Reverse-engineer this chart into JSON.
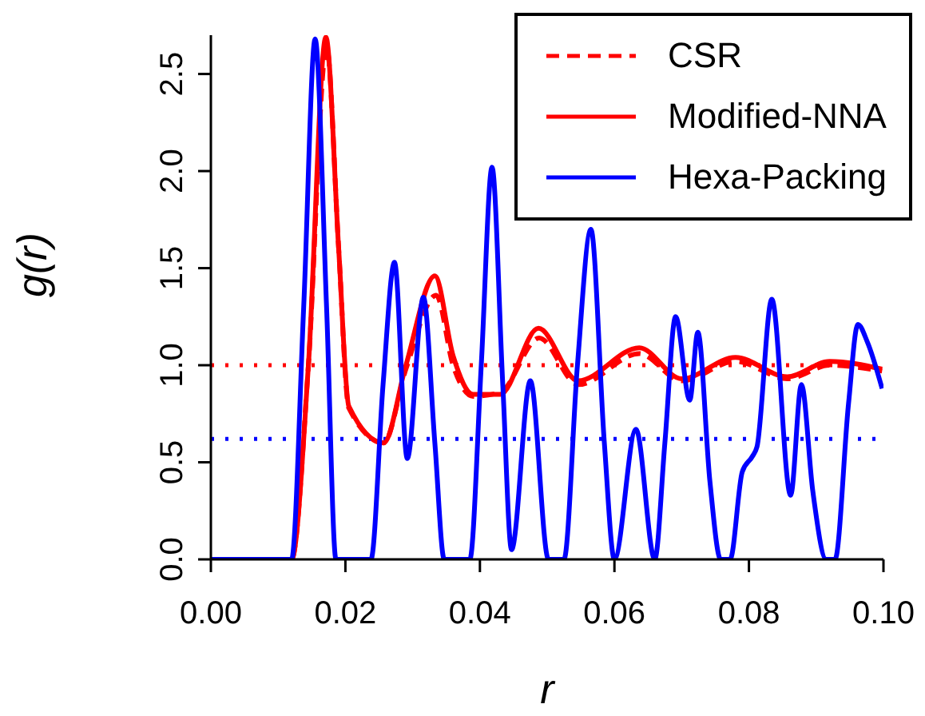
{
  "chart_data": {
    "type": "line",
    "xlabel": "r",
    "ylabel": "g(r)",
    "legend": "top right",
    "grid": false,
    "xlim": [
      0,
      0.1
    ],
    "xticks": [
      {
        "value": 0,
        "label": "0.00"
      },
      {
        "value": 0.02,
        "label": "0.02"
      },
      {
        "value": 0.04,
        "label": "0.04"
      },
      {
        "value": 0.06,
        "label": "0.06"
      },
      {
        "value": 0.08,
        "label": "0.08"
      },
      {
        "value": 0.1,
        "label": "0.10"
      }
    ],
    "ylim": [
      0,
      2.7
    ],
    "yticks": [
      {
        "value": 0,
        "label": "0.0"
      },
      {
        "value": 0.5,
        "label": "0.5"
      },
      {
        "value": 1,
        "label": "1.0"
      },
      {
        "value": 1.5,
        "label": "1.5"
      },
      {
        "value": 2,
        "label": "2.0"
      },
      {
        "value": 2.5,
        "label": "2.5"
      }
    ],
    "ref_lines": [
      {
        "axis": "y",
        "value": 1,
        "color": "#ff0000",
        "line_style": "dotted"
      },
      {
        "axis": "y",
        "value": 0.62,
        "color": "#0000ff",
        "line_style": "dotted"
      }
    ],
    "series": [
      {
        "name": "CSR",
        "color": "#ff0000",
        "line_style": "dashed",
        "x": [
          0,
          0.012,
          0.0145,
          0.0172,
          0.019,
          0.0205,
          0.0257,
          0.029,
          0.0335,
          0.036,
          0.039,
          0.043,
          0.0488,
          0.0546,
          0.0637,
          0.07,
          0.078,
          0.0857,
          0.092,
          0.0998
        ],
        "values": [
          0,
          0,
          1.0,
          2.64,
          1.6,
          0.78,
          0.6,
          0.98,
          1.36,
          1.0,
          0.84,
          0.86,
          1.14,
          0.9,
          1.06,
          0.92,
          1.02,
          0.93,
          1.0,
          0.97
        ]
      },
      {
        "name": "Modified-NNA",
        "color": "#ff0000",
        "line_style": "solid",
        "x": [
          0,
          0.012,
          0.0145,
          0.0171,
          0.019,
          0.0205,
          0.0257,
          0.029,
          0.0333,
          0.036,
          0.039,
          0.043,
          0.0487,
          0.0546,
          0.0637,
          0.07,
          0.078,
          0.0857,
          0.092,
          0.0998
        ],
        "values": [
          0,
          0,
          1.0,
          2.69,
          1.6,
          0.79,
          0.6,
          1.0,
          1.46,
          1.05,
          0.85,
          0.85,
          1.19,
          0.92,
          1.09,
          0.93,
          1.04,
          0.94,
          1.02,
          0.98
        ]
      },
      {
        "name": "Hexa-Packing",
        "color": "#0000ff",
        "line_style": "solid",
        "x": [
          0,
          0.012,
          0.0138,
          0.0155,
          0.0172,
          0.0186,
          0.0238,
          0.0256,
          0.0273,
          0.0292,
          0.0316,
          0.0333,
          0.0347,
          0.0385,
          0.0402,
          0.0418,
          0.0434,
          0.0447,
          0.0475,
          0.0502,
          0.0525,
          0.0545,
          0.0565,
          0.0585,
          0.06,
          0.0632,
          0.066,
          0.0675,
          0.0691,
          0.0712,
          0.0724,
          0.0742,
          0.0758,
          0.0772,
          0.079,
          0.0805,
          0.0812,
          0.0834,
          0.0862,
          0.0878,
          0.0895,
          0.0915,
          0.0928,
          0.0948,
          0.0962,
          0.0976,
          0.0998
        ],
        "values": [
          0,
          0,
          1.3,
          2.68,
          1.3,
          0,
          0,
          0.9,
          1.53,
          0.52,
          1.35,
          0.6,
          0,
          0,
          1.0,
          2.02,
          0.9,
          0.05,
          0.92,
          0,
          0,
          1.0,
          1.7,
          0.6,
          0,
          0.67,
          0,
          0.6,
          1.25,
          0.82,
          1.17,
          0.4,
          0,
          0,
          0.45,
          0.53,
          0.58,
          1.34,
          0.33,
          0.9,
          0.35,
          0,
          0,
          0.8,
          1.21,
          1.12,
          0.88
        ]
      }
    ]
  }
}
